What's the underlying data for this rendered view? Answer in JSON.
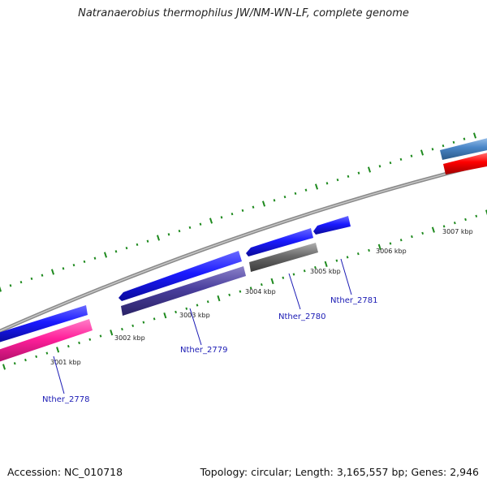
{
  "title": "Natranaerobius thermophilus JW/NM-WN-LF, complete genome",
  "footer": {
    "accession": "Accession: NC_010718",
    "summary": "Topology: circular; Length: 3,165,557 bp; Genes: 2,946"
  },
  "kbp_labels": [
    "3001 kbp",
    "3002 kbp",
    "3003 kbp",
    "3004 kbp",
    "3005 kbp",
    "3006 kbp",
    "3007 kbp"
  ],
  "gene_labels": [
    "Nther_2778",
    "Nther_2779",
    "Nther_2780",
    "Nther_2781"
  ],
  "colors": {
    "backbone": "#8a8a8a",
    "tick": "#1e8a1e",
    "cds_forward": "#1a1aff",
    "cds_reverse": "#4a3f9e",
    "gene_pink": "#ff1f9a",
    "gene_grey": "#6a6a6a",
    "gene_red": "#ff0000",
    "gene_steelblue": "#4a86c8",
    "label": "#1a1ab4"
  }
}
